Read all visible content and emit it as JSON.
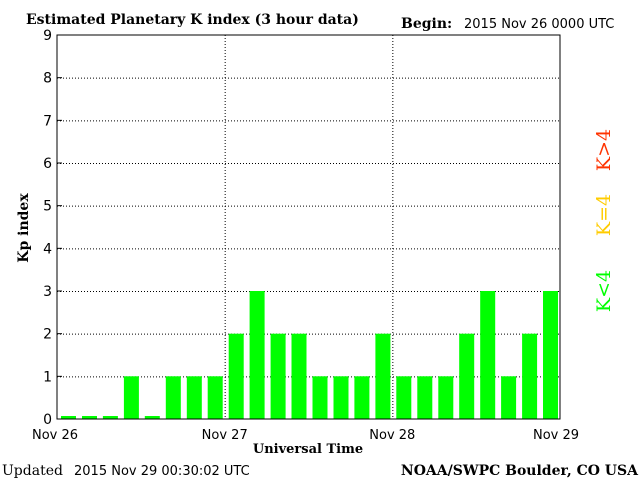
{
  "header": {
    "title": "Estimated Planetary K index (3 hour data)",
    "begin_label": "Begin:",
    "begin_value": "2015 Nov 26 0000 UTC"
  },
  "footer": {
    "updated_label": "Updated",
    "updated_value": "2015 Nov 29 00:30:02 UTC",
    "source": "NOAA/SWPC Boulder, CO USA"
  },
  "legend": {
    "high": {
      "label": "K>4",
      "color": "#ff3300"
    },
    "equal": {
      "label": "K=4",
      "color": "#ffcc00"
    },
    "low": {
      "label": "K<4",
      "color": "#00ff00"
    }
  },
  "chart_data": {
    "type": "bar",
    "title": "Estimated Planetary K index (3 hour data)",
    "xlabel": "Universal Time",
    "ylabel": "Kp index",
    "ylim": [
      0,
      9
    ],
    "yticks": [
      "0",
      "1",
      "2",
      "3",
      "4",
      "5",
      "6",
      "7",
      "8",
      "9"
    ],
    "xtick_labels": [
      "Nov 26",
      "Nov 27",
      "Nov 28",
      "Nov 29"
    ],
    "interval_hours": 3,
    "values": [
      0,
      0,
      0,
      1,
      0,
      1,
      1,
      1,
      2,
      3,
      2,
      2,
      1,
      1,
      1,
      2,
      1,
      1,
      1,
      2,
      3,
      1,
      2,
      3
    ],
    "bar_color": "#00ff00",
    "grid": "dotted vertical day separators and horizontal lines at each Kp level",
    "legend_position": "right"
  }
}
